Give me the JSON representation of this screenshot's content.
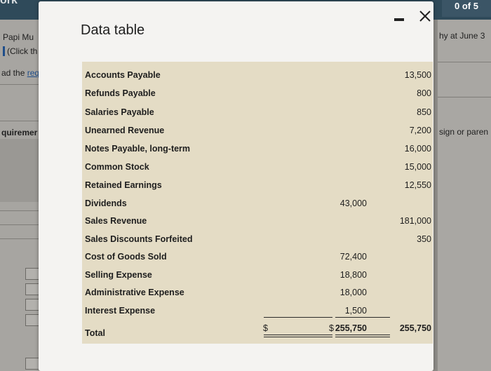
{
  "background": {
    "top_left": "ork",
    "progress": "0 of 5",
    "left_lines": [
      "Papi Mu",
      "(Click th",
      "ad the ",
      "req",
      "quiremer"
    ],
    "right_lines": [
      "hy at June 3",
      "sign or paren"
    ]
  },
  "modal": {
    "title": "Data table"
  },
  "table": {
    "rows": [
      {
        "label": "Accounts Payable",
        "debit": "",
        "credit": "13,500"
      },
      {
        "label": "Refunds Payable",
        "debit": "",
        "credit": "800"
      },
      {
        "label": "Salaries Payable",
        "debit": "",
        "credit": "850"
      },
      {
        "label": "Unearned Revenue",
        "debit": "",
        "credit": "7,200"
      },
      {
        "label": "Notes Payable, long-term",
        "debit": "",
        "credit": "16,000"
      },
      {
        "label": "Common Stock",
        "debit": "",
        "credit": "15,000"
      },
      {
        "label": "Retained Earnings",
        "debit": "",
        "credit": "12,550"
      },
      {
        "label": "Dividends",
        "debit": "43,000",
        "credit": ""
      },
      {
        "label": "Sales Revenue",
        "debit": "",
        "credit": "181,000"
      },
      {
        "label": "Sales Discounts Forfeited",
        "debit": "",
        "credit": "350"
      },
      {
        "label": "Cost of Goods Sold",
        "debit": "72,400",
        "credit": ""
      },
      {
        "label": "Selling Expense",
        "debit": "18,800",
        "credit": ""
      },
      {
        "label": "Administrative Expense",
        "debit": "18,000",
        "credit": ""
      },
      {
        "label": "Interest Expense",
        "debit": "1,500",
        "credit": ""
      }
    ],
    "total": {
      "label": "Total",
      "currency": "$",
      "debit": "255,750",
      "credit": "255,750"
    }
  },
  "colors": {
    "table_bg": "#e4dcc5",
    "modal_bg": "#f4f3f1"
  }
}
